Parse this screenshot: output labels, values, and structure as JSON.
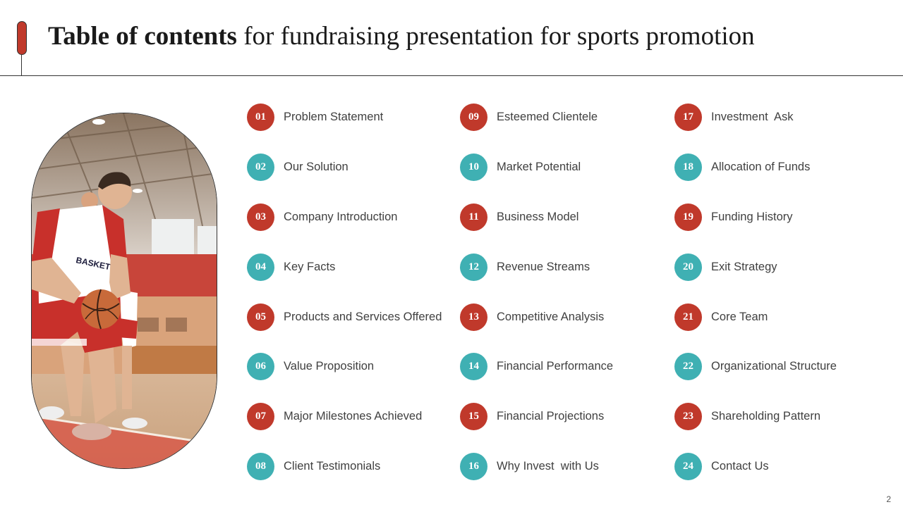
{
  "title": {
    "bold": "Table of contents",
    "rest": " for fundraising presentation for sports promotion"
  },
  "photo": {
    "description_icon": "basketball-player-photo",
    "jersey_text": "BASKETBA"
  },
  "colors": {
    "red": "#c0392b",
    "teal": "#3fb0b3"
  },
  "toc": [
    {
      "num": "01",
      "label": "Problem Statement",
      "color": "red"
    },
    {
      "num": "02",
      "label": "Our Solution",
      "color": "teal"
    },
    {
      "num": "03",
      "label": "Company Introduction",
      "color": "red"
    },
    {
      "num": "04",
      "label": "Key Facts",
      "color": "teal"
    },
    {
      "num": "05",
      "label": "Products and Services Offered",
      "color": "red"
    },
    {
      "num": "06",
      "label": "Value Proposition",
      "color": "teal"
    },
    {
      "num": "07",
      "label": "Major Milestones Achieved",
      "color": "red"
    },
    {
      "num": "08",
      "label": "Client Testimonials",
      "color": "teal"
    },
    {
      "num": "09",
      "label": "Esteemed Clientele",
      "color": "red"
    },
    {
      "num": "10",
      "label": "Market Potential",
      "color": "teal"
    },
    {
      "num": "11",
      "label": "Business Model",
      "color": "red"
    },
    {
      "num": "12",
      "label": "Revenue Streams",
      "color": "teal"
    },
    {
      "num": "13",
      "label": "Competitive Analysis",
      "color": "red"
    },
    {
      "num": "14",
      "label": "Financial Performance",
      "color": "teal"
    },
    {
      "num": "15",
      "label": "Financial Projections",
      "color": "red"
    },
    {
      "num": "16",
      "label": "Why Invest  with Us",
      "color": "teal"
    },
    {
      "num": "17",
      "label": "Investment  Ask",
      "color": "red"
    },
    {
      "num": "18",
      "label": "Allocation of Funds",
      "color": "teal"
    },
    {
      "num": "19",
      "label": "Funding History",
      "color": "red"
    },
    {
      "num": "20",
      "label": "Exit Strategy",
      "color": "teal"
    },
    {
      "num": "21",
      "label": "Core Team",
      "color": "red"
    },
    {
      "num": "22",
      "label": "Organizational Structure",
      "color": "teal"
    },
    {
      "num": "23",
      "label": "Shareholding Pattern",
      "color": "red"
    },
    {
      "num": "24",
      "label": "Contact Us",
      "color": "teal"
    }
  ],
  "page_number": "2"
}
